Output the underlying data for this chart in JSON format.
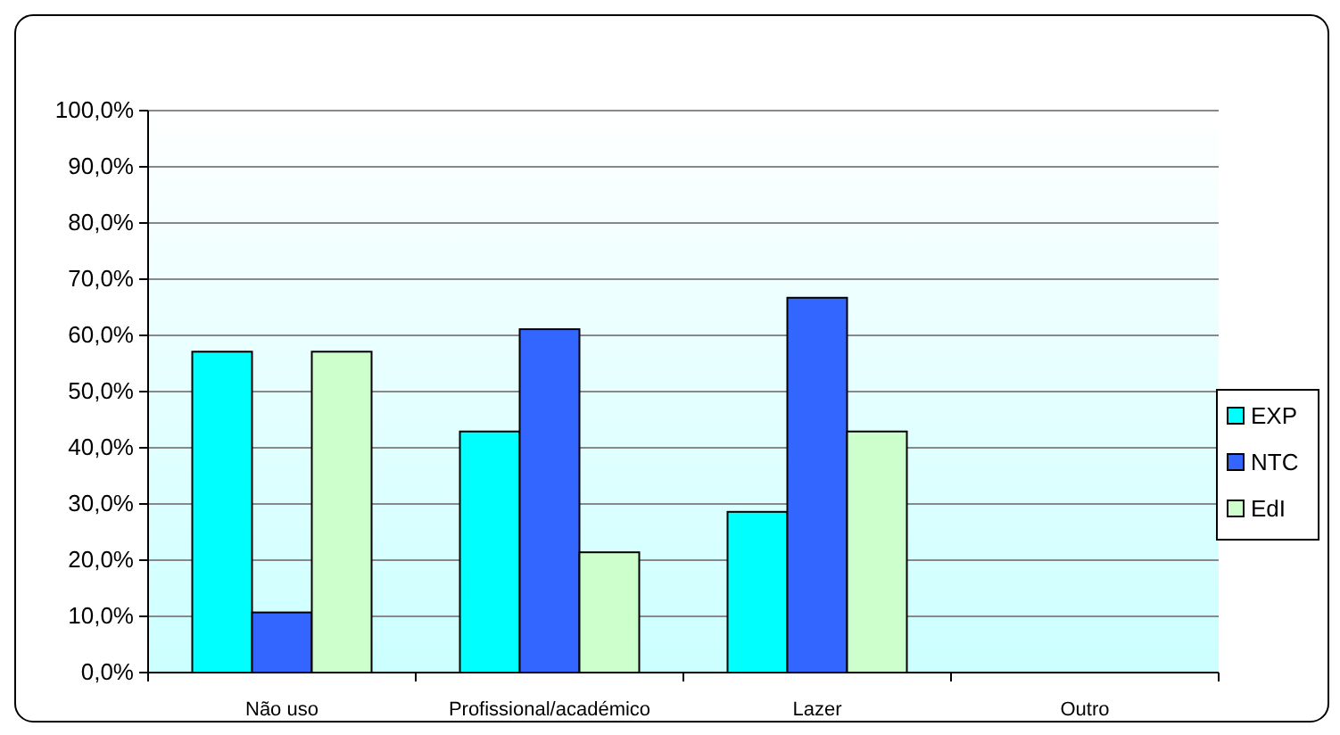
{
  "chart_data": {
    "type": "bar",
    "categories": [
      "Não uso",
      "Profissional/académico",
      "Lazer",
      "Outro"
    ],
    "series": [
      {
        "name": "EXP",
        "color": "#00ffff",
        "values": [
          57.1,
          42.9,
          28.6,
          0
        ]
      },
      {
        "name": "NTC",
        "color": "#3366ff",
        "values": [
          10.7,
          61.1,
          66.7,
          0
        ]
      },
      {
        "name": "EdI",
        "color": "#ccffcc",
        "values": [
          57.1,
          21.4,
          42.9,
          0
        ]
      }
    ],
    "ylim": [
      0,
      100
    ],
    "yticks": [
      {
        "value": 0,
        "label": "0,0%"
      },
      {
        "value": 10,
        "label": "10,0%"
      },
      {
        "value": 20,
        "label": "20,0%"
      },
      {
        "value": 30,
        "label": "30,0%"
      },
      {
        "value": 40,
        "label": "40,0%"
      },
      {
        "value": 50,
        "label": "50,0%"
      },
      {
        "value": 60,
        "label": "60,0%"
      },
      {
        "value": 70,
        "label": "70,0%"
      },
      {
        "value": 80,
        "label": "80,0%"
      },
      {
        "value": 90,
        "label": "90,0%"
      },
      {
        "value": 100,
        "label": "100,0%"
      }
    ],
    "grid": "y",
    "legend": "right"
  }
}
